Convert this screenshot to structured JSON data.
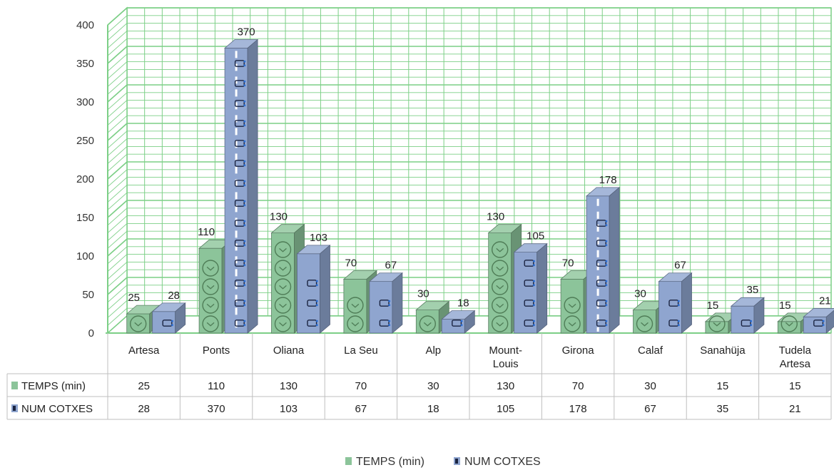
{
  "chart_data": {
    "type": "bar",
    "style": "3d-clustered-column-with-data-table",
    "categories": [
      [
        "Artesa"
      ],
      [
        "Ponts"
      ],
      [
        "Oliana"
      ],
      [
        "La Seu"
      ],
      [
        "Alp"
      ],
      [
        "Mount-",
        "Louis"
      ],
      [
        "Girona"
      ],
      [
        "Calaf"
      ],
      [
        "Sanahüja"
      ],
      [
        "Tudela",
        "Artesa"
      ]
    ],
    "series": [
      {
        "name": "TEMPS (min)",
        "values": [
          25,
          110,
          130,
          70,
          30,
          130,
          70,
          30,
          15,
          15
        ],
        "color": "#8cc49a",
        "icon": "clock-icon"
      },
      {
        "name": "NUM COTXES",
        "values": [
          28,
          370,
          103,
          67,
          18,
          105,
          178,
          67,
          35,
          21
        ],
        "color": "#8fa5cf",
        "icon": "car-icon"
      }
    ],
    "yticks": [
      "0",
      "50",
      "100",
      "150",
      "200",
      "250",
      "300",
      "350",
      "400"
    ],
    "ylim": [
      0,
      400
    ],
    "grid": true,
    "legend": "bottom",
    "data_table": true,
    "gridline_color": "#7ccf86"
  }
}
